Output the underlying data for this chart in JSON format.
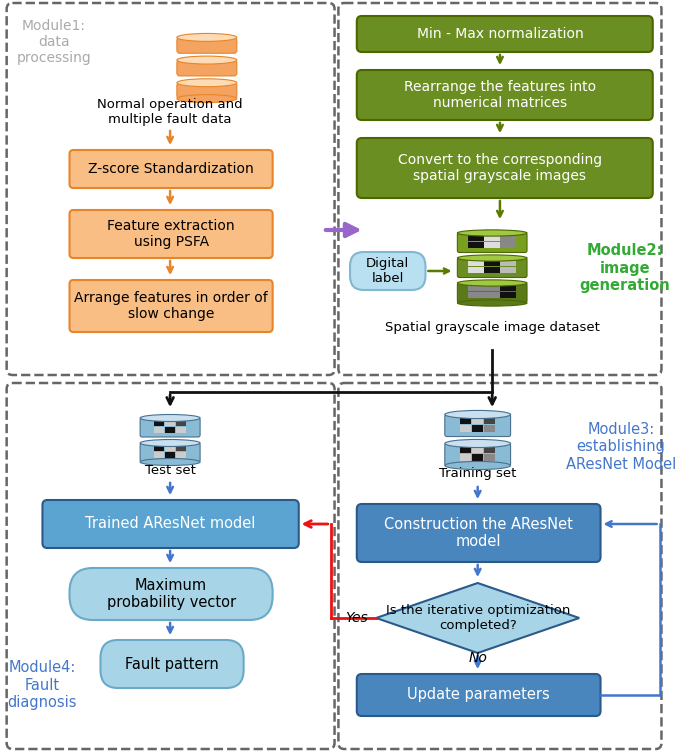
{
  "fig_width": 6.85,
  "fig_height": 7.52,
  "dpi": 100,
  "bg_color": "#ffffff",
  "module1_label": "Module1:\ndata\nprocessing",
  "module2_label": "Module2:\nimage\ngeneration",
  "module3_label": "Module3:\nestablishing\nAResNet Model",
  "module4_label": "Module4:\nFault\ndiagnosis",
  "orange_fill": "#F9BE84",
  "orange_border": "#E8852A",
  "orange_db_fill": "#F4A460",
  "orange_db_top": "#FDDCB5",
  "green_fill": "#6B8E23",
  "green_border": "#4B6800",
  "green_arrow": "#5A7A00",
  "blue_dark_fill": "#4A86BE",
  "blue_dark_border": "#2B5A8A",
  "blue_medium_fill": "#5BA3D0",
  "blue_light_fill": "#A8D4E8",
  "blue_light_border": "#6AAAC8",
  "blue_db_fill": "#7AAFC8",
  "blue_db_top": "#C8E0F0",
  "cyan_box_fill": "#B8E0F0",
  "cyan_box_border": "#80B8D0",
  "dashed_border": "#666666",
  "module1_color": "#AAAAAA",
  "module2_color": "#33AA33",
  "module3_color": "#4477CC",
  "module4_color": "#4477CC",
  "arrow_orange": "#E8852A",
  "arrow_green": "#5A7A00",
  "arrow_blue": "#4477CC",
  "arrow_black": "#111111",
  "arrow_red": "#EE1111",
  "arrow_purple": "#9966CC"
}
